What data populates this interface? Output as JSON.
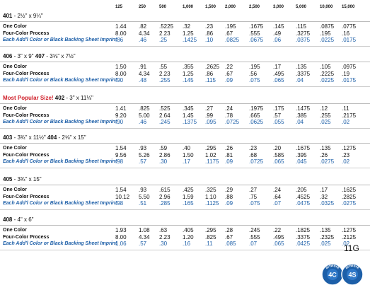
{
  "header": {
    "quantities": [
      "125",
      "250",
      "500",
      "1,000",
      "1,500",
      "2,000",
      "2,500",
      "3,000",
      "5,000",
      "10,000",
      "15,000"
    ]
  },
  "sections": [
    {
      "items": [
        {
          "code": "401",
          "size": "- 2½\" x 9¼\""
        }
      ],
      "rows": [
        {
          "label": "One Color",
          "values": [
            "1.44",
            ".82",
            ".5225",
            ".32",
            ".23",
            ".195",
            ".1675",
            ".145",
            ".115",
            ".0875",
            ".0775"
          ]
        },
        {
          "label": "Four-Color Process",
          "values": [
            "8.00",
            "4.34",
            "2.23",
            "1.25",
            ".86",
            ".67",
            ".555",
            ".49",
            ".3275",
            ".195",
            ".16"
          ]
        },
        {
          "label": "Each Add'l Color or Black Backing Sheet Imprint",
          "values": [
            ".86",
            ".46",
            ".25",
            ".1425",
            ".10",
            ".0825",
            ".0675",
            ".06",
            ".0375",
            ".0225",
            ".0175"
          ]
        }
      ]
    },
    {
      "items": [
        {
          "code": "406",
          "size": "- 3\" x 9\""
        },
        {
          "code": "407",
          "size": "- 3⅝\" x 7½\""
        }
      ],
      "rows": [
        {
          "label": "One Color",
          "values": [
            "1.50",
            ".91",
            ".55",
            ".355",
            ".2625",
            ".22",
            ".195",
            ".17",
            ".135",
            ".105",
            ".0975"
          ]
        },
        {
          "label": "Four-Color Process",
          "values": [
            "8.00",
            "4.34",
            "2.23",
            "1.25",
            ".86",
            ".67",
            ".56",
            ".495",
            ".3375",
            ".2225",
            ".19"
          ]
        },
        {
          "label": "Each Add'l Color or Black Backing Sheet Imprint",
          "values": [
            ".90",
            ".48",
            ".255",
            ".145",
            ".115",
            ".09",
            ".075",
            ".065",
            ".04",
            ".0225",
            ".0175"
          ]
        }
      ]
    },
    {
      "prefix": "Most Popular Size!",
      "items": [
        {
          "code": "402",
          "size": "- 3\" x 11⅛\""
        }
      ],
      "rows": [
        {
          "label": "One Color",
          "values": [
            "1.41",
            ".825",
            ".525",
            ".345",
            ".27",
            ".24",
            ".1975",
            ".175",
            ".1475",
            ".12",
            ".11"
          ]
        },
        {
          "label": "Four-Color Process",
          "values": [
            "9.20",
            "5.00",
            "2.64",
            "1.45",
            ".99",
            ".78",
            ".665",
            ".57",
            ".385",
            ".255",
            ".2175"
          ]
        },
        {
          "label": "Each Add'l Color or Black Backing Sheet Imprint",
          "values": [
            ".90",
            ".46",
            ".245",
            ".1375",
            ".095",
            ".0725",
            ".0625",
            ".055",
            ".04",
            ".025",
            ".02"
          ]
        }
      ]
    },
    {
      "items": [
        {
          "code": "403",
          "size": "- 3¾\" x 11½\""
        },
        {
          "code": "404",
          "size": "- 2⅝\" x 15\""
        }
      ],
      "rows": [
        {
          "label": "One Color",
          "values": [
            "1.54",
            ".93",
            ".59",
            ".40",
            ".295",
            ".26",
            ".23",
            ".20",
            ".1675",
            ".135",
            ".1275"
          ]
        },
        {
          "label": "Four-Color Process",
          "values": [
            "9.56",
            "5.26",
            "2.86",
            "1.50",
            "1.02",
            ".81",
            ".68",
            ".585",
            ".395",
            ".26",
            ".23"
          ]
        },
        {
          "label": "Each Add'l Color or Black Backing Sheet Imprint",
          "values": [
            ".98",
            ".57",
            ".30",
            ".17",
            ".1175",
            ".09",
            ".0725",
            ".065",
            ".045",
            ".0275",
            ".02"
          ]
        }
      ]
    },
    {
      "items": [
        {
          "code": "405",
          "size": "- 3¾\" x 15\""
        }
      ],
      "rows": [
        {
          "label": "One Color",
          "values": [
            "1.54",
            ".93",
            ".615",
            ".425",
            ".325",
            ".29",
            ".27",
            ".24",
            ".205",
            ".17",
            ".1625"
          ]
        },
        {
          "label": "Four-Color Process",
          "values": [
            "10.12",
            "5.50",
            "2.96",
            "1.59",
            "1.10",
            ".88",
            ".75",
            ".64",
            ".4525",
            ".32",
            ".2825"
          ]
        },
        {
          "label": "Each Add'l Color or Black Backing Sheet Imprint",
          "values": [
            ".98",
            ".51",
            ".285",
            ".165",
            ".1125",
            ".09",
            ".075",
            ".07",
            ".0475",
            ".0325",
            ".0275"
          ]
        }
      ]
    },
    {
      "items": [
        {
          "code": "408",
          "size": "- 4\" x 6\""
        }
      ],
      "rows": [
        {
          "label": "One Color",
          "values": [
            "1.93",
            "1.08",
            ".63",
            ".405",
            ".295",
            ".28",
            ".245",
            ".22",
            ".1825",
            ".135",
            ".1275"
          ]
        },
        {
          "label": "Four-Color Process",
          "values": [
            "8.00",
            "4.34",
            "2.23",
            "1.20",
            ".825",
            ".67",
            ".555",
            ".495",
            ".3375",
            ".2325",
            ".2125"
          ]
        },
        {
          "label": "Each Add'l Color or Black Backing Sheet Imprint",
          "values": [
            "1.06",
            ".57",
            ".30",
            ".16",
            ".11",
            ".085",
            ".07",
            ".065",
            ".0425",
            ".025",
            ".02"
          ]
        }
      ]
    }
  ],
  "page_label": "11G",
  "badges": [
    {
      "code": "4C",
      "caption": "artwork"
    },
    {
      "code": "4S",
      "caption": "artwork"
    }
  ]
}
